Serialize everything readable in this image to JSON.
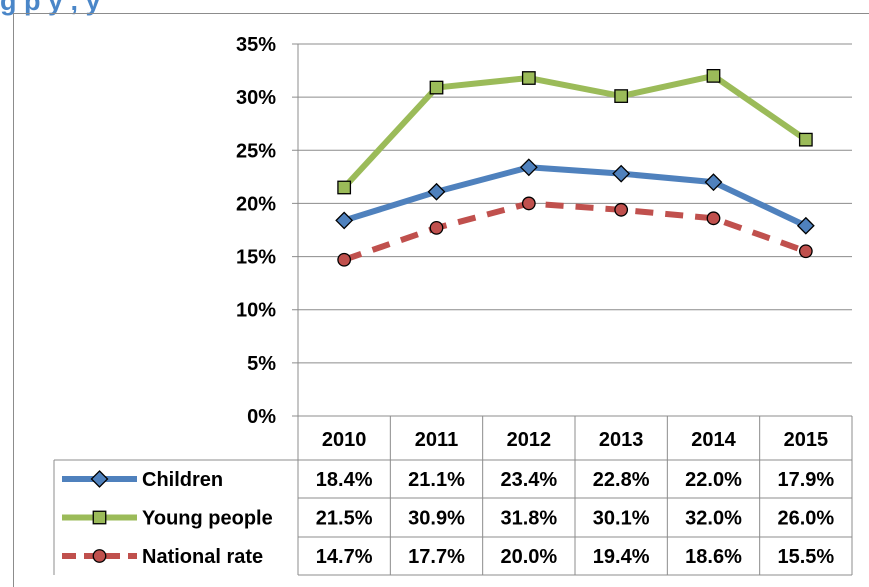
{
  "heading": "g                                  p        y                                    ,  y",
  "chart_data": {
    "type": "line",
    "categories": [
      "2010",
      "2011",
      "2012",
      "2013",
      "2014",
      "2015"
    ],
    "ylim": [
      0,
      35
    ],
    "yticks": [
      "0%",
      "5%",
      "10%",
      "15%",
      "20%",
      "25%",
      "30%",
      "35%"
    ],
    "grid": true,
    "legend": "data-table",
    "series": [
      {
        "name": "Children",
        "values": [
          18.4,
          21.1,
          23.4,
          22.8,
          22.0,
          17.9
        ],
        "labels": [
          "18.4%",
          "21.1%",
          "23.4%",
          "22.8%",
          "22.0%",
          "17.9%"
        ],
        "color": "#4f81bd",
        "marker": "diamond",
        "dash": false
      },
      {
        "name": "Young people",
        "values": [
          21.5,
          30.9,
          31.8,
          30.1,
          32.0,
          26.0
        ],
        "labels": [
          "21.5%",
          "30.9%",
          "31.8%",
          "30.1%",
          "32.0%",
          "26.0%"
        ],
        "color": "#9bbb59",
        "marker": "square",
        "dash": false
      },
      {
        "name": "National rate",
        "values": [
          14.7,
          17.7,
          20.0,
          19.4,
          18.6,
          15.5
        ],
        "labels": [
          "14.7%",
          "17.7%",
          "20.0%",
          "19.4%",
          "18.6%",
          "15.5%"
        ],
        "color": "#c0504d",
        "marker": "circle",
        "dash": true
      }
    ]
  }
}
